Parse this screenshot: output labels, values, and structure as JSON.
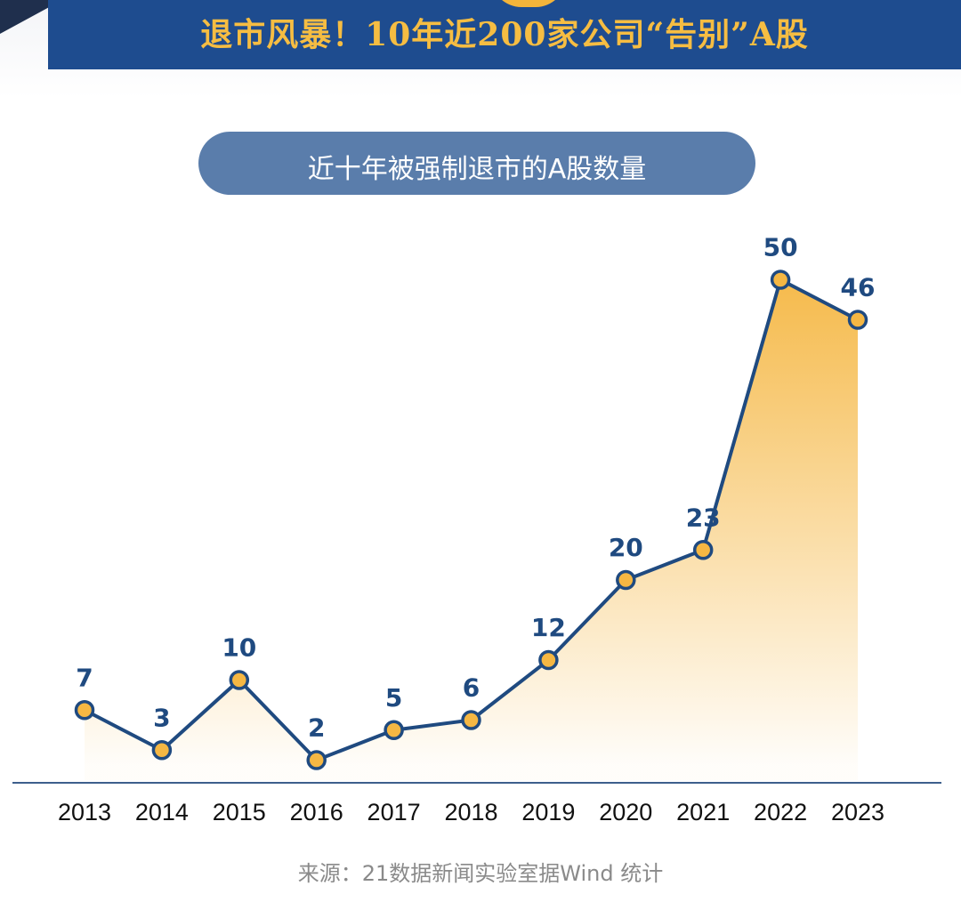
{
  "header": {
    "title": "退市风暴！10年近200家公司“告别”A股",
    "subtitle": "近十年被强制退市的A股数量"
  },
  "chart_data": {
    "type": "area",
    "title": "近十年被强制退市的A股数量",
    "categories": [
      "2013",
      "2014",
      "2015",
      "2016",
      "2017",
      "2018",
      "2019",
      "2020",
      "2021",
      "2022",
      "2023"
    ],
    "values": [
      7,
      3,
      10,
      2,
      5,
      6,
      12,
      20,
      23,
      50,
      46
    ],
    "ylim": [
      0,
      50
    ],
    "grid": false,
    "data_labels": true,
    "colors": {
      "line": "#1f4a80",
      "marker_fill": "#f5b743",
      "area_top": "#f5b743",
      "axis": "#3d5f8c",
      "label": "#1f4a80"
    }
  },
  "footer": {
    "source": "来源：21数据新闻实验室据Wind 统计"
  }
}
